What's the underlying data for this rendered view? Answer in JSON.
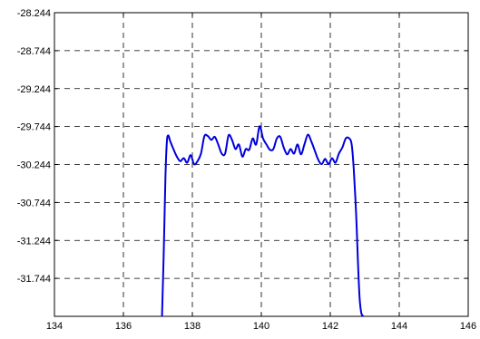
{
  "chart_data": {
    "type": "line",
    "title": "",
    "xlabel": "",
    "ylabel": "",
    "xlim": [
      134,
      146
    ],
    "ylim": [
      -32.244,
      -28.244
    ],
    "x_ticks": [
      134,
      136,
      138,
      140,
      142,
      144,
      146
    ],
    "x_tick_labels": [
      "134",
      "136",
      "138",
      "140",
      "142",
      "144",
      "146"
    ],
    "y_ticks": [
      -28.244,
      -28.744,
      -29.244,
      -29.744,
      -30.244,
      -30.744,
      -31.244,
      -31.744
    ],
    "y_tick_labels": [
      "-28.244",
      "-28.744",
      "-29.244",
      "-29.744",
      "-30.244",
      "-30.744",
      "-31.244",
      "-31.744"
    ],
    "grid": true,
    "series": [
      {
        "color": "#0000dd",
        "x": [
          137.12,
          137.17,
          137.22,
          137.26,
          137.3,
          137.36,
          137.45,
          137.55,
          137.65,
          137.75,
          137.85,
          137.95,
          138.05,
          138.15,
          138.25,
          138.35,
          138.45,
          138.55,
          138.65,
          138.75,
          138.85,
          138.95,
          139.05,
          139.15,
          139.25,
          139.35,
          139.45,
          139.55,
          139.65,
          139.75,
          139.85,
          139.95,
          140.05,
          140.15,
          140.25,
          140.35,
          140.45,
          140.55,
          140.65,
          140.75,
          140.85,
          140.95,
          141.05,
          141.15,
          141.25,
          141.35,
          141.45,
          141.55,
          141.65,
          141.75,
          141.85,
          141.95,
          142.05,
          142.15,
          142.25,
          142.35,
          142.45,
          142.55,
          142.62,
          142.68,
          142.75,
          142.8,
          142.85,
          142.9,
          142.95
        ],
        "y": [
          -32.24,
          -31.4,
          -30.4,
          -29.95,
          -29.86,
          -29.94,
          -30.04,
          -30.14,
          -30.2,
          -30.16,
          -30.22,
          -30.12,
          -30.24,
          -30.2,
          -30.1,
          -29.87,
          -29.87,
          -29.92,
          -29.88,
          -29.98,
          -30.1,
          -30.1,
          -29.86,
          -29.92,
          -30.04,
          -29.98,
          -30.14,
          -30.04,
          -30.05,
          -29.9,
          -29.98,
          -29.74,
          -29.9,
          -29.98,
          -30.05,
          -30.04,
          -29.9,
          -29.88,
          -30.02,
          -30.11,
          -30.04,
          -30.1,
          -29.98,
          -30.11,
          -29.98,
          -29.85,
          -29.94,
          -30.06,
          -30.18,
          -30.24,
          -30.17,
          -30.24,
          -30.16,
          -30.22,
          -30.1,
          -30.02,
          -29.9,
          -29.9,
          -29.98,
          -30.3,
          -30.9,
          -31.5,
          -32.0,
          -32.2,
          -32.24
        ]
      }
    ]
  }
}
